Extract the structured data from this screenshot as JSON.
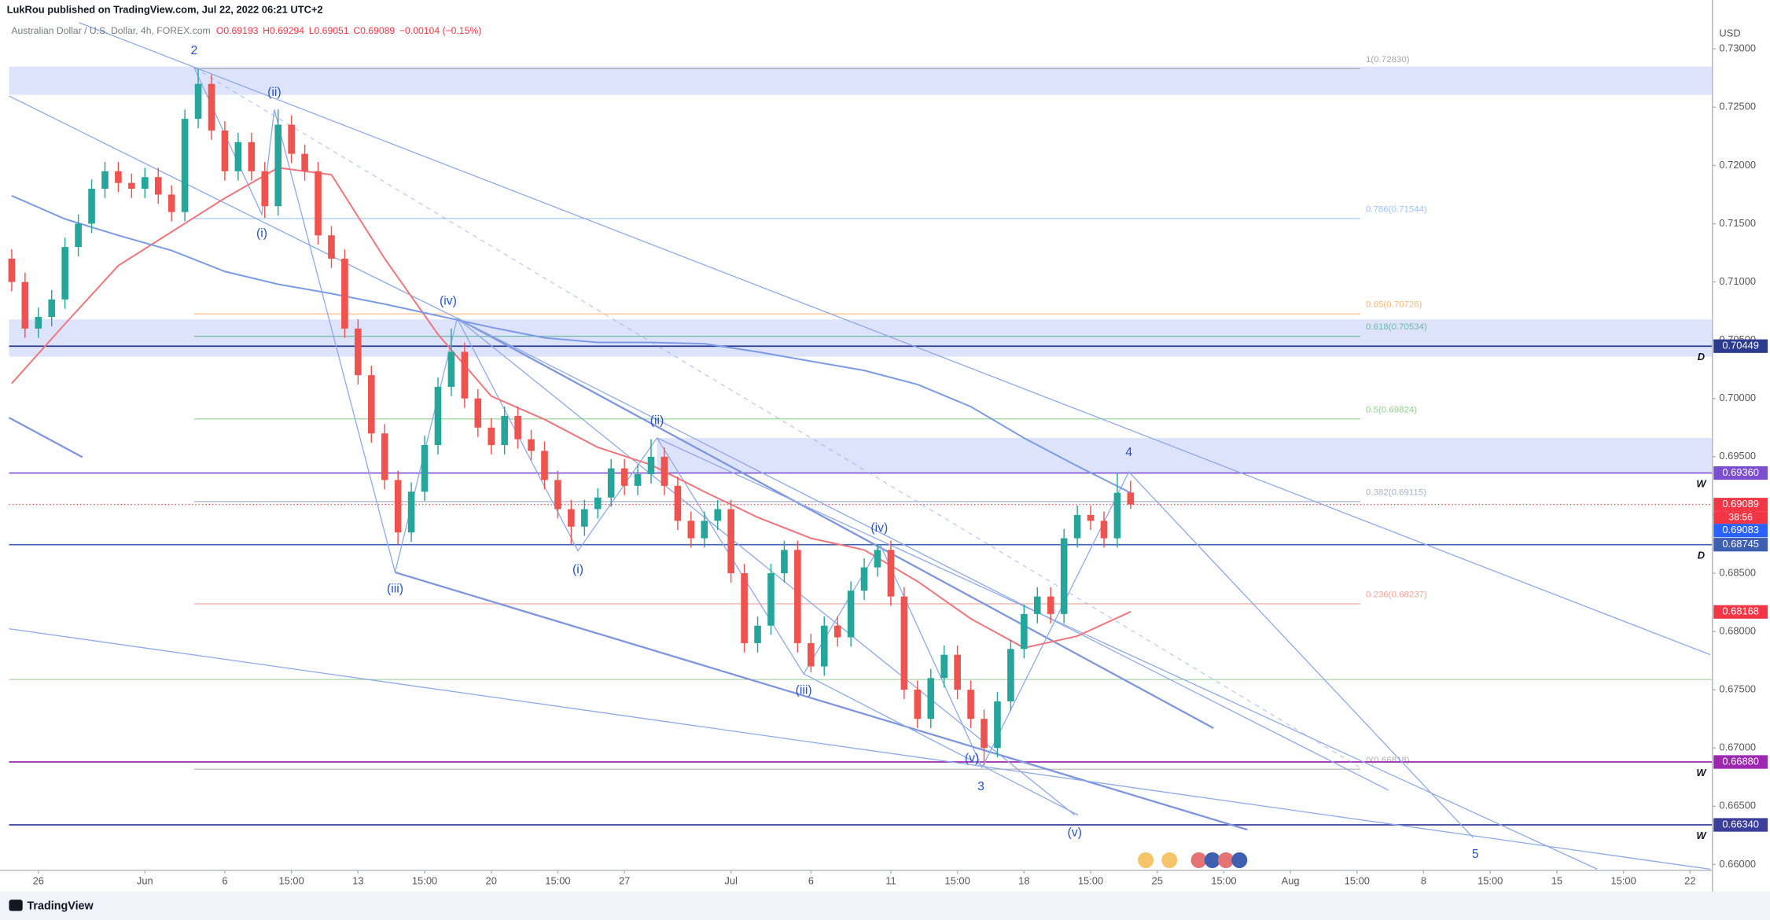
{
  "header": {
    "publisher": "LukRou published on TradingView.com, Jul 22, 2022 06:21 UTC+2",
    "symbol": "Australian Dollar / U.S. Dollar, 4h, FOREX.com",
    "ohlc": [
      "O0.69193",
      "H0.69294",
      "L0.69051",
      "C0.69089",
      "−0.00104 (−0.15%)"
    ]
  },
  "footer": {
    "brand": "TradingView"
  },
  "chart_data": {
    "type": "candlestick",
    "currency": "USD",
    "grid": false,
    "up_color": "#26a69a",
    "down_color": "#ef5350",
    "xlim": [
      -1.44,
      62.84
    ],
    "ylim": [
      0.6595,
      0.7342
    ],
    "yticks": [
      {
        "value": 0.66,
        "label": "0.66000"
      },
      {
        "value": 0.665,
        "label": "0.66500"
      },
      {
        "value": 0.67,
        "label": "0.67000"
      },
      {
        "value": 0.675,
        "label": "0.67500"
      },
      {
        "value": 0.68,
        "label": "0.68000"
      },
      {
        "value": 0.685,
        "label": "0.68500"
      },
      {
        "value": 0.69,
        "label": "0.69000"
      },
      {
        "value": 0.695,
        "label": "0.69500"
      },
      {
        "value": 0.7,
        "label": "0.70000"
      },
      {
        "value": 0.705,
        "label": "0.70500"
      },
      {
        "value": 0.71,
        "label": "0.71000"
      },
      {
        "value": 0.715,
        "label": "0.71500"
      },
      {
        "value": 0.72,
        "label": "0.72000"
      },
      {
        "value": 0.725,
        "label": "0.72500"
      },
      {
        "value": 0.73,
        "label": "0.73000"
      }
    ],
    "xticks": [
      {
        "value": 0,
        "label": "26"
      },
      {
        "value": 4,
        "label": "Jun"
      },
      {
        "value": 7,
        "label": "6"
      },
      {
        "value": 9.5,
        "label": "15:00"
      },
      {
        "value": 12,
        "label": "13"
      },
      {
        "value": 14.5,
        "label": "15:00"
      },
      {
        "value": 17,
        "label": "20"
      },
      {
        "value": 19.5,
        "label": "15:00"
      },
      {
        "value": 22,
        "label": "27"
      },
      {
        "value": 26,
        "label": "Jul"
      },
      {
        "value": 29,
        "label": "6"
      },
      {
        "value": 32,
        "label": "11"
      },
      {
        "value": 34.5,
        "label": "15:00"
      },
      {
        "value": 37,
        "label": "18"
      },
      {
        "value": 39.5,
        "label": "15:00"
      },
      {
        "value": 42,
        "label": "25"
      },
      {
        "value": 44.5,
        "label": "15:00"
      },
      {
        "value": 47,
        "label": "Aug"
      },
      {
        "value": 49.5,
        "label": "15:00"
      },
      {
        "value": 52,
        "label": "8"
      },
      {
        "value": 54.5,
        "label": "15:00"
      },
      {
        "value": 57,
        "label": "15"
      },
      {
        "value": 59.5,
        "label": "15:00"
      },
      {
        "value": 62,
        "label": "22"
      }
    ],
    "x": [
      -1,
      -0.5,
      0,
      0.5,
      1,
      1.5,
      2,
      2.5,
      3,
      3.5,
      4,
      4.5,
      5,
      5.5,
      6,
      6.5,
      7,
      7.5,
      8,
      8.5,
      9,
      9.5,
      10,
      10.5,
      11,
      11.5,
      12,
      12.5,
      13,
      13.5,
      14,
      14.5,
      15,
      15.5,
      16,
      16.5,
      17,
      17.5,
      18,
      18.5,
      19,
      19.5,
      20,
      20.5,
      21,
      21.5,
      22,
      22.5,
      23,
      23.5,
      24,
      24.5,
      25,
      25.5,
      26,
      26.5,
      27,
      27.5,
      28,
      28.5,
      29,
      29.5,
      30,
      30.5,
      31,
      31.5,
      32,
      32.5,
      33,
      33.5,
      34,
      34.5,
      35,
      35.5,
      36,
      36.5,
      37,
      37.5,
      38,
      38.5,
      39,
      39.5,
      40,
      40.5,
      41
    ],
    "open": [
      0.712,
      0.71,
      0.706,
      0.707,
      0.7085,
      0.713,
      0.715,
      0.718,
      0.7195,
      0.7185,
      0.718,
      0.719,
      0.7175,
      0.716,
      0.724,
      0.727,
      0.723,
      0.7195,
      0.722,
      0.7195,
      0.7165,
      0.7235,
      0.721,
      0.7195,
      0.714,
      0.712,
      0.706,
      0.702,
      0.697,
      0.693,
      0.6885,
      0.692,
      0.696,
      0.701,
      0.704,
      0.7,
      0.6975,
      0.696,
      0.6985,
      0.6965,
      0.6955,
      0.693,
      0.6905,
      0.689,
      0.6905,
      0.6915,
      0.694,
      0.6925,
      0.6935,
      0.695,
      0.6925,
      0.6895,
      0.688,
      0.6895,
      0.6905,
      0.685,
      0.679,
      0.6805,
      0.685,
      0.687,
      0.679,
      0.677,
      0.6805,
      0.6795,
      0.6835,
      0.6855,
      0.687,
      0.683,
      0.675,
      0.6725,
      0.676,
      0.678,
      0.675,
      0.6725,
      0.67,
      0.674,
      0.6785,
      0.6815,
      0.683,
      0.6815,
      0.688,
      0.69,
      0.6895,
      0.688,
      0.69193
    ],
    "high": [
      0.7128,
      0.7108,
      0.7078,
      0.7093,
      0.7138,
      0.7158,
      0.7188,
      0.7203,
      0.7203,
      0.7193,
      0.7198,
      0.7198,
      0.7183,
      0.7248,
      0.7283,
      0.7278,
      0.7238,
      0.7228,
      0.7228,
      0.7203,
      0.7248,
      0.7243,
      0.7218,
      0.7203,
      0.7148,
      0.7128,
      0.7068,
      0.7028,
      0.6978,
      0.6938,
      0.6928,
      0.6968,
      0.7018,
      0.706,
      0.7048,
      0.7008,
      0.6983,
      0.6993,
      0.6993,
      0.6973,
      0.6963,
      0.6938,
      0.6913,
      0.6913,
      0.6923,
      0.6948,
      0.6948,
      0.6943,
      0.6965,
      0.6958,
      0.6933,
      0.6903,
      0.6903,
      0.6913,
      0.6913,
      0.6858,
      0.6813,
      0.6858,
      0.6878,
      0.6878,
      0.6798,
      0.6813,
      0.6813,
      0.6843,
      0.6863,
      0.6875,
      0.6878,
      0.6838,
      0.6758,
      0.6768,
      0.6788,
      0.6788,
      0.6758,
      0.6733,
      0.6748,
      0.6793,
      0.6823,
      0.6838,
      0.6838,
      0.6888,
      0.6908,
      0.6908,
      0.6903,
      0.6936,
      0.69294
    ],
    "low": [
      0.7092,
      0.7052,
      0.7052,
      0.7062,
      0.7077,
      0.7122,
      0.7142,
      0.7172,
      0.7177,
      0.7172,
      0.7172,
      0.7167,
      0.7152,
      0.7152,
      0.7232,
      0.7222,
      0.7187,
      0.7187,
      0.7187,
      0.7155,
      0.7157,
      0.7202,
      0.7187,
      0.7132,
      0.7112,
      0.7052,
      0.7012,
      0.6962,
      0.6922,
      0.6875,
      0.6877,
      0.6912,
      0.6952,
      0.7002,
      0.6992,
      0.6967,
      0.6952,
      0.6952,
      0.6957,
      0.6947,
      0.6922,
      0.6897,
      0.6875,
      0.6882,
      0.6897,
      0.6907,
      0.6917,
      0.6917,
      0.6927,
      0.6917,
      0.6887,
      0.6872,
      0.6872,
      0.6887,
      0.6842,
      0.6782,
      0.6782,
      0.6797,
      0.6842,
      0.6782,
      0.6765,
      0.6762,
      0.6787,
      0.6787,
      0.6827,
      0.6847,
      0.6822,
      0.6742,
      0.6717,
      0.6717,
      0.6752,
      0.6742,
      0.6717,
      0.6685,
      0.6692,
      0.6732,
      0.6777,
      0.6807,
      0.6807,
      0.6807,
      0.6872,
      0.6887,
      0.6872,
      0.6872,
      0.69051
    ],
    "close": [
      0.71,
      0.706,
      0.707,
      0.7085,
      0.713,
      0.715,
      0.718,
      0.7195,
      0.7185,
      0.718,
      0.719,
      0.7175,
      0.716,
      0.724,
      0.727,
      0.723,
      0.7195,
      0.722,
      0.7195,
      0.7165,
      0.7235,
      0.721,
      0.7195,
      0.714,
      0.712,
      0.706,
      0.702,
      0.697,
      0.693,
      0.6885,
      0.692,
      0.696,
      0.701,
      0.704,
      0.7,
      0.6975,
      0.696,
      0.6985,
      0.6965,
      0.6955,
      0.693,
      0.6905,
      0.689,
      0.6905,
      0.6915,
      0.694,
      0.6925,
      0.6935,
      0.695,
      0.6925,
      0.6895,
      0.688,
      0.6895,
      0.6905,
      0.685,
      0.679,
      0.6805,
      0.685,
      0.687,
      0.679,
      0.677,
      0.6805,
      0.6795,
      0.6835,
      0.6855,
      0.687,
      0.683,
      0.675,
      0.6725,
      0.676,
      0.678,
      0.675,
      0.6725,
      0.67,
      0.674,
      0.6785,
      0.6815,
      0.683,
      0.6815,
      0.688,
      0.69,
      0.6895,
      0.688,
      0.6919,
      0.69089
    ],
    "moving_averages": [
      {
        "color": "#f0767c",
        "x": [
          -1,
          1,
          3,
          5,
          7,
          9,
          11,
          13,
          15,
          17,
          19,
          21,
          23,
          25,
          27,
          29,
          31,
          33,
          35,
          37,
          39,
          41
        ],
        "values": [
          0.7013,
          0.7064,
          0.7114,
          0.7143,
          0.7172,
          0.7198,
          0.7192,
          0.712,
          0.7055,
          0.7002,
          0.6982,
          0.6958,
          0.6943,
          0.692,
          0.6898,
          0.688,
          0.687,
          0.6843,
          0.6811,
          0.6786,
          0.6796,
          0.6817
        ]
      },
      {
        "color": "#7b9be6",
        "x": [
          -1,
          1,
          3,
          5,
          7,
          9,
          11,
          13,
          15,
          17,
          19,
          21,
          23,
          25,
          27,
          29,
          31,
          33,
          35,
          37,
          39,
          41
        ],
        "values": [
          0.7174,
          0.7154,
          0.714,
          0.7127,
          0.7109,
          0.7098,
          0.709,
          0.7081,
          0.7071,
          0.7061,
          0.7052,
          0.7048,
          0.7048,
          0.7047,
          0.704,
          0.7032,
          0.7024,
          0.7012,
          0.6993,
          0.6966,
          0.6942,
          0.6919
        ]
      }
    ],
    "fib_levels": [
      {
        "value": 0.7283,
        "label": "1(0.72830)",
        "color": "#a8a8a8"
      },
      {
        "value": 0.71544,
        "label": "0.786(0.71544)",
        "color": "#9cc3f0"
      },
      {
        "value": 0.70726,
        "label": "0.65(0.70726)",
        "color": "#f5b97a"
      },
      {
        "value": 0.70534,
        "label": "0.618(0.70534)",
        "color": "#6fb8a8"
      },
      {
        "value": 0.69824,
        "label": "0.5(0.69824)",
        "color": "#8fd18f"
      },
      {
        "value": 0.69115,
        "label": "0.382(0.69115)",
        "color": "#a5b4c8"
      },
      {
        "value": 0.68237,
        "label": "0.236(0.68237)",
        "color": "#f2a39a"
      },
      {
        "value": 0.66818,
        "label": "0(0.66818)",
        "color": "#b0b0b0"
      }
    ],
    "levels": [
      {
        "value": 0.70449,
        "label": "0.70449",
        "color": "#2b3b8f",
        "marker": "D"
      },
      {
        "value": 0.6936,
        "label": "0.69360",
        "color": "#7b4fd0",
        "marker": "W"
      },
      {
        "value": 0.68745,
        "label": "0.68745",
        "color": "#3f5fb0",
        "marker": "D"
      },
      {
        "value": 0.6688,
        "label": "0.66880",
        "color": "#9c27b0",
        "marker": "W"
      },
      {
        "value": 0.6634,
        "label": "0.66340",
        "color": "#3b3f9a",
        "marker": "W"
      }
    ],
    "price_flags": [
      {
        "value": 0.69089,
        "label": "0.69089",
        "color": "#f23645",
        "countdown": "38:56",
        "dotted": true
      },
      {
        "value": 0.69083,
        "label": "0.69083",
        "color": "#2962ff"
      },
      {
        "value": 0.68168,
        "label": "0.68168",
        "color": "#f23645"
      }
    ],
    "wave_labels": [
      "2",
      "(ii)",
      "(i)",
      "(iv)",
      "(iii)",
      "(ii)",
      "(i)",
      "(iv)",
      "(iii)",
      "(v)",
      "3",
      "(v)",
      "4",
      "5"
    ]
  }
}
